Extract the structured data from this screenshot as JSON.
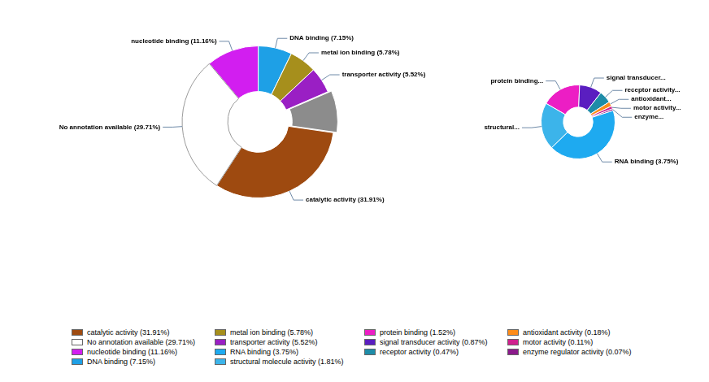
{
  "chart_data": [
    {
      "type": "doughnut",
      "categories": [
        "nucleotide binding (11.16%)",
        "DNA binding (7.15%)",
        "metal ion binding (5.78%)",
        "transporter activity (5.52%)",
        null,
        "catalytic activity (31.91%)",
        "No annotation available (29.71%)"
      ],
      "values": [
        11.16,
        7.15,
        5.78,
        5.52,
        8.78,
        31.91,
        29.71
      ],
      "colors": [
        "#d21ef0",
        "#1ea0e6",
        "#a68f1c",
        "#9a1fc4",
        "#8c8c8c",
        "#9e4a10",
        "#ffffff"
      ]
    },
    {
      "type": "doughnut",
      "categories": [
        "protein binding...",
        "signal transducer...",
        "receptor activity...",
        "antioxidant...",
        "motor activity...",
        "enzyme...",
        "RNA binding (3.75%)",
        "structural..."
      ],
      "values": [
        1.52,
        0.87,
        0.47,
        0.18,
        0.11,
        0.07,
        3.75,
        1.81
      ],
      "colors": [
        "#ec1ec4",
        "#5a1ec0",
        "#1e8ca8",
        "#ff8c1a",
        "#d0208e",
        "#8b1a8b",
        "#1eaaf0",
        "#3cb4ea"
      ]
    }
  ],
  "legend_columns": [
    [
      {
        "label": "catalytic activity (31.91%)",
        "color": "#9e4a10"
      },
      {
        "label": "No annotation available (29.71%)",
        "color": "#ffffff"
      },
      {
        "label": "nucleotide binding (11.16%)",
        "color": "#d21ef0"
      },
      {
        "label": "DNA binding (7.15%)",
        "color": "#1ea0e6"
      }
    ],
    [
      {
        "label": "metal ion binding (5.78%)",
        "color": "#a68f1c"
      },
      {
        "label": "transporter activity (5.52%)",
        "color": "#9a1fc4"
      },
      {
        "label": "RNA binding (3.75%)",
        "color": "#1eaaf0"
      },
      {
        "label": "structural molecule activity (1.81%)",
        "color": "#3cb4ea"
      }
    ],
    [
      {
        "label": "protein binding (1.52%)",
        "color": "#ec1ec4"
      },
      {
        "label": "signal transducer activity (0.87%)",
        "color": "#5a1ec0"
      },
      {
        "label": "receptor activity (0.47%)",
        "color": "#1e8ca8"
      }
    ],
    [
      {
        "label": "antioxidant activity (0.18%)",
        "color": "#ff8c1a"
      },
      {
        "label": "motor activity (0.11%)",
        "color": "#d0208e"
      },
      {
        "label": "enzyme regulator activity (0.07%)",
        "color": "#8b1a8b"
      }
    ]
  ]
}
